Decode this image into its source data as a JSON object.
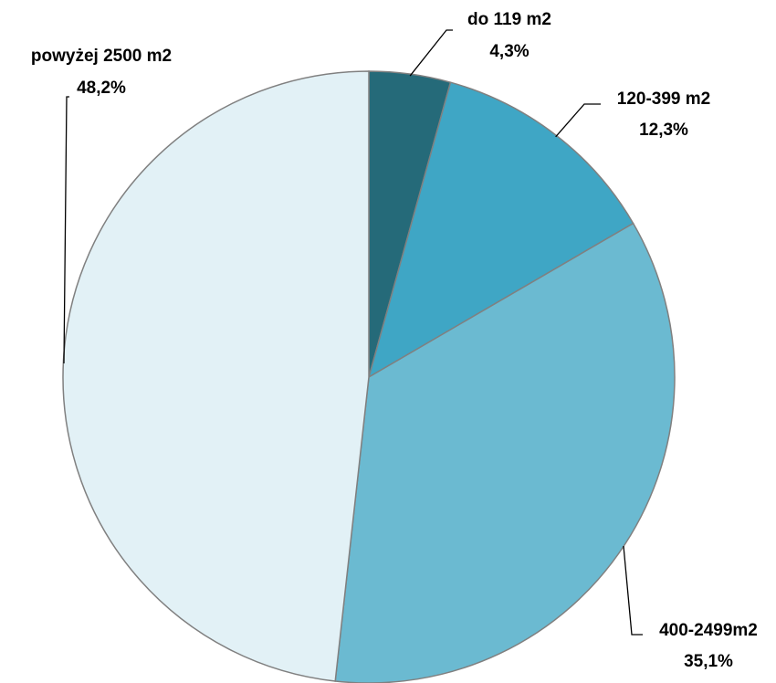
{
  "chart_data": {
    "type": "pie",
    "title": "",
    "slices": [
      {
        "label": "do 119 m2",
        "value": 4.3,
        "value_text": "4,3%",
        "color": "#256a79"
      },
      {
        "label": "120-399 m2",
        "value": 12.3,
        "value_text": "12,3%",
        "color": "#3fa6c5"
      },
      {
        "label": "400-2499m2",
        "value": 35.1,
        "value_text": "35,1%",
        "color": "#6bbad1"
      },
      {
        "label": "powyżej 2500 m2",
        "value": 48.2,
        "value_text": "48,2%",
        "color": "#e2f1f6"
      }
    ],
    "start_angle_deg": 0,
    "direction": "clockwise",
    "slice_border_color": "#808080",
    "leader_line_color": "#000000"
  }
}
